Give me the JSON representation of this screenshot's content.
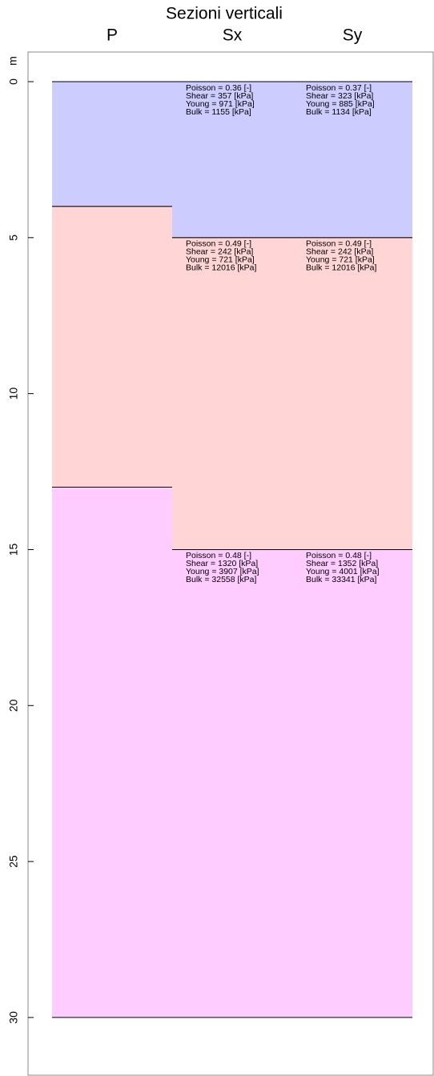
{
  "chart_data": {
    "type": "layers",
    "title": "Sezioni verticali",
    "y_label": "m",
    "ylim": [
      -0.95,
      31.85
    ],
    "yticks": [
      0,
      5,
      10,
      15,
      20,
      25,
      30
    ],
    "columns": [
      {
        "name": "P",
        "layers": [
          {
            "top": 0,
            "bottom": 4,
            "color": "#ccccff"
          },
          {
            "top": 4,
            "bottom": 13,
            "color": "#ffd5d5"
          },
          {
            "top": 13,
            "bottom": 30,
            "color": "#ffccff"
          }
        ]
      },
      {
        "name": "Sx",
        "layers": [
          {
            "top": 0,
            "bottom": 5,
            "color": "#ccccff",
            "labels": [
              "Poisson = 0.36 [-]",
              "Shear = 357 [kPa]",
              "Young = 971 [kPa]",
              "Bulk = 1155 [kPa]"
            ]
          },
          {
            "top": 5,
            "bottom": 15,
            "color": "#ffd5d5",
            "labels": [
              "Poisson = 0.49 [-]",
              "Shear = 242 [kPa]",
              "Young = 721 [kPa]",
              "Bulk = 12016 [kPa]"
            ]
          },
          {
            "top": 15,
            "bottom": 30,
            "color": "#ffccff",
            "labels": [
              "Poisson = 0.48 [-]",
              "Shear = 1320 [kPa]",
              "Young = 3907 [kPa]",
              "Bulk = 32558 [kPa]"
            ]
          }
        ]
      },
      {
        "name": "Sy",
        "layers": [
          {
            "top": 0,
            "bottom": 5,
            "color": "#ccccff",
            "labels": [
              "Poisson = 0.37 [-]",
              "Shear = 323 [kPa]",
              "Young = 885 [kPa]",
              "Bulk = 1134 [kPa]"
            ]
          },
          {
            "top": 5,
            "bottom": 15,
            "color": "#ffd5d5",
            "labels": [
              "Poisson = 0.49 [-]",
              "Shear = 242 [kPa]",
              "Young = 721 [kPa]",
              "Bulk = 12016 [kPa]"
            ]
          },
          {
            "top": 15,
            "bottom": 30,
            "color": "#ffccff",
            "labels": [
              "Poisson = 0.48 [-]",
              "Shear = 1352 [kPa]",
              "Young = 4001 [kPa]",
              "Bulk = 33341 [kPa]"
            ]
          }
        ]
      }
    ]
  }
}
